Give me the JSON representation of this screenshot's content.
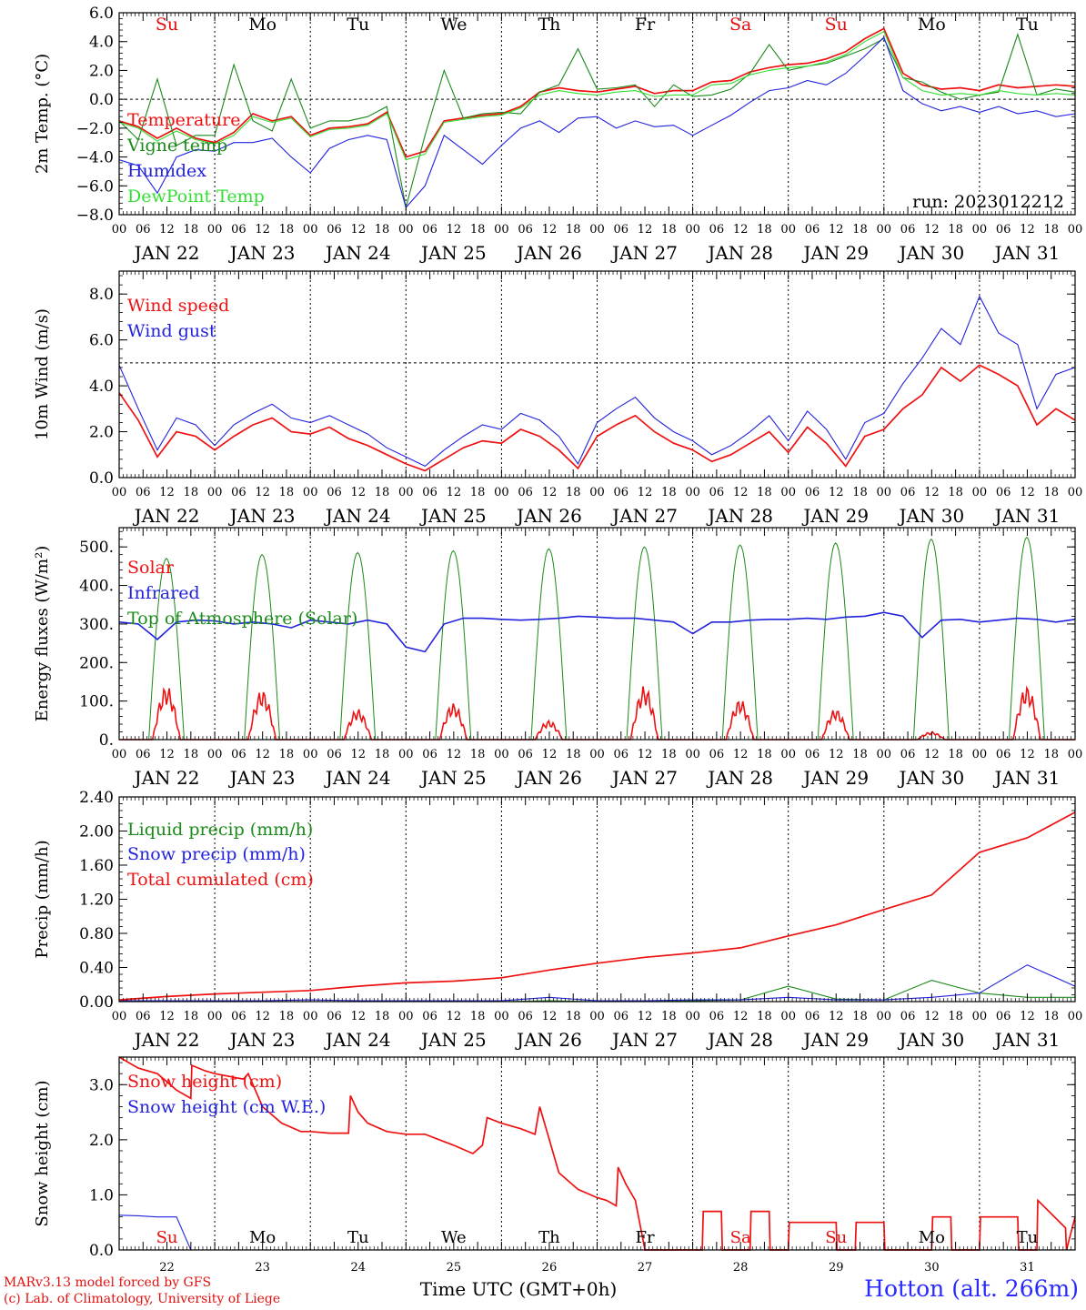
{
  "run_label": "run: 2023012212",
  "credit_lines": [
    "MARv3.13 model forced by GFS",
    "(c) Lab. of Climatology, University of Liege"
  ],
  "station": "Hotton (alt. 266m)",
  "x_axis_label": "Time UTC (GMT+0h)",
  "date_labels": [
    "JAN 22",
    "JAN 23",
    "JAN 24",
    "JAN 25",
    "JAN 26",
    "JAN 27",
    "JAN 28",
    "JAN 29",
    "JAN 30",
    "JAN 31"
  ],
  "hour_ticks": [
    "00",
    "06",
    "12",
    "18"
  ],
  "day_names": [
    {
      "label": "Su",
      "color": "#e01010"
    },
    {
      "label": "Mo",
      "color": "#000000"
    },
    {
      "label": "Tu",
      "color": "#000000"
    },
    {
      "label": "We",
      "color": "#000000"
    },
    {
      "label": "Th",
      "color": "#000000"
    },
    {
      "label": "Fr",
      "color": "#000000"
    },
    {
      "label": "Sa",
      "color": "#e01010"
    },
    {
      "label": "Su",
      "color": "#e01010"
    },
    {
      "label": "Mo",
      "color": "#000000"
    },
    {
      "label": "Tu",
      "color": "#000000"
    }
  ],
  "bottom_day_numbers": [
    "22",
    "23",
    "24",
    "25",
    "26",
    "27",
    "28",
    "29",
    "30",
    "31"
  ],
  "colors": {
    "red": "#ee1111",
    "green": "#1a8a1a",
    "blue": "#2222dd",
    "lightgreen": "#33dd33"
  },
  "chart_data": [
    {
      "type": "line",
      "name": "temperature",
      "ylabel": "2m Temp. (°C)",
      "ylim": [
        -8,
        6
      ],
      "ticks": [
        "6.0",
        "4.0",
        "2.0",
        "0.0",
        "−2.0",
        "−4.0",
        "−6.0",
        "−8.0"
      ],
      "tick_values": [
        6,
        4,
        2,
        0,
        -2,
        -4,
        -6,
        -8
      ],
      "ref_line": 0,
      "x_days": [
        0,
        0.2,
        0.4,
        0.6,
        0.8,
        1,
        1.2,
        1.4,
        1.6,
        1.8,
        2,
        2.2,
        2.4,
        2.6,
        2.8,
        3,
        3.2,
        3.4,
        3.6,
        3.8,
        4,
        4.2,
        4.4,
        4.6,
        4.8,
        5,
        5.2,
        5.4,
        5.6,
        5.8,
        6,
        6.2,
        6.4,
        6.6,
        6.8,
        7,
        7.2,
        7.4,
        7.6,
        7.8,
        8,
        8.2,
        8.4,
        8.6,
        8.8,
        9,
        9.2,
        9.4,
        9.6,
        9.8,
        10
      ],
      "series": [
        {
          "name": "Temperature",
          "color": "#ee1111",
          "values": [
            -1.5,
            -1.9,
            -2.7,
            -2.0,
            -2.7,
            -3.0,
            -2.3,
            -1.0,
            -1.5,
            -1.2,
            -2.5,
            -2.0,
            -1.9,
            -1.7,
            -0.9,
            -4.0,
            -3.6,
            -1.5,
            -1.3,
            -1.1,
            -1.0,
            -0.5,
            0.5,
            0.8,
            0.6,
            0.5,
            0.7,
            0.9,
            0.4,
            0.6,
            0.6,
            1.2,
            1.3,
            1.9,
            2.2,
            2.4,
            2.5,
            2.8,
            3.3,
            4.2,
            4.9,
            1.8,
            1.0,
            0.7,
            0.8,
            0.6,
            1.0,
            0.8,
            0.9,
            1.0,
            0.9
          ]
        },
        {
          "name": "Vigne temp",
          "color": "#1a8a1a",
          "values": [
            -1.5,
            -2.8,
            1.4,
            -3.2,
            -2.5,
            -2.5,
            2.4,
            -1.5,
            -2.2,
            1.4,
            -2.0,
            -1.5,
            -1.5,
            -1.2,
            -0.5,
            -7.5,
            -2.5,
            2.0,
            -1.3,
            -1.0,
            -0.9,
            -1.0,
            0.5,
            1.0,
            3.5,
            0.7,
            0.8,
            1.0,
            -0.5,
            1.0,
            0.2,
            0.3,
            0.7,
            1.8,
            3.8,
            2.0,
            2.3,
            2.5,
            3.0,
            3.5,
            4.2,
            1.5,
            1.2,
            0.5,
            0.0,
            0.3,
            0.5,
            4.5,
            0.3,
            0.7,
            0.5
          ]
        },
        {
          "name": "Humidex",
          "color": "#2222dd",
          "values": [
            -4.2,
            -4.6,
            -6.5,
            -4.0,
            -3.5,
            -3.6,
            -3.0,
            -3.0,
            -2.7,
            -4.0,
            -5.1,
            -3.4,
            -2.8,
            -2.5,
            -2.8,
            -7.5,
            -6.0,
            -2.5,
            -3.5,
            -4.5,
            -3.2,
            -2.0,
            -1.5,
            -2.3,
            -1.3,
            -1.2,
            -2.0,
            -1.5,
            -1.9,
            -1.8,
            -2.5,
            -1.8,
            -1.1,
            -0.2,
            0.6,
            0.8,
            1.3,
            1.0,
            1.8,
            3.0,
            4.3,
            0.6,
            -0.3,
            -0.8,
            -0.5,
            -0.9,
            -0.5,
            -1.0,
            -0.8,
            -1.2,
            -1.0
          ]
        },
        {
          "name": "DewPoint Temp",
          "color": "#33dd33",
          "values": [
            -1.6,
            -2.0,
            -2.9,
            -2.2,
            -2.8,
            -3.1,
            -2.5,
            -1.2,
            -1.6,
            -1.3,
            -2.6,
            -2.1,
            -2.0,
            -1.8,
            -1.0,
            -4.2,
            -3.8,
            -1.6,
            -1.4,
            -1.2,
            -1.1,
            -0.6,
            0.3,
            0.6,
            0.4,
            0.3,
            0.5,
            0.6,
            0.2,
            0.3,
            0.3,
            1.0,
            1.1,
            1.7,
            2.0,
            2.2,
            2.3,
            2.6,
            3.1,
            4.0,
            4.7,
            1.5,
            0.6,
            0.3,
            0.4,
            0.3,
            0.6,
            0.4,
            0.3,
            0.4,
            0.3
          ]
        }
      ]
    },
    {
      "type": "line",
      "name": "wind",
      "ylabel": "10m Wind (m/s)",
      "ylim": [
        0,
        9
      ],
      "ticks": [
        "8.0",
        "6.0",
        "4.0",
        "2.0",
        "0.0"
      ],
      "tick_values": [
        8,
        6,
        4,
        2,
        0
      ],
      "ref_line": 5,
      "x_days": [
        0,
        0.2,
        0.4,
        0.6,
        0.8,
        1,
        1.2,
        1.4,
        1.6,
        1.8,
        2,
        2.2,
        2.4,
        2.6,
        2.8,
        3,
        3.2,
        3.4,
        3.6,
        3.8,
        4,
        4.2,
        4.4,
        4.6,
        4.8,
        5,
        5.2,
        5.4,
        5.6,
        5.8,
        6,
        6.2,
        6.4,
        6.6,
        6.8,
        7,
        7.2,
        7.4,
        7.6,
        7.8,
        8,
        8.2,
        8.4,
        8.6,
        8.8,
        9,
        9.2,
        9.4,
        9.6,
        9.8,
        10
      ],
      "series": [
        {
          "name": "Wind speed",
          "color": "#ee1111",
          "values": [
            3.7,
            2.5,
            0.9,
            2.0,
            1.8,
            1.2,
            1.8,
            2.3,
            2.6,
            2.0,
            1.9,
            2.2,
            1.7,
            1.4,
            1.0,
            0.6,
            0.3,
            0.8,
            1.3,
            1.6,
            1.5,
            2.1,
            1.8,
            1.2,
            0.4,
            1.8,
            2.3,
            2.7,
            2.0,
            1.5,
            1.2,
            0.7,
            1.0,
            1.5,
            2.0,
            1.1,
            2.2,
            1.5,
            0.5,
            1.8,
            2.1,
            3.0,
            3.6,
            4.8,
            4.2,
            4.9,
            4.5,
            4.0,
            2.3,
            3.0,
            2.5
          ]
        },
        {
          "name": "Wind gust",
          "color": "#2222dd",
          "values": [
            4.9,
            3.0,
            1.2,
            2.6,
            2.3,
            1.4,
            2.3,
            2.8,
            3.2,
            2.6,
            2.4,
            2.7,
            2.3,
            1.9,
            1.3,
            0.9,
            0.5,
            1.2,
            1.8,
            2.3,
            2.1,
            2.8,
            2.5,
            1.8,
            0.6,
            2.4,
            3.0,
            3.5,
            2.6,
            2.0,
            1.6,
            1.0,
            1.4,
            2.0,
            2.7,
            1.6,
            2.9,
            2.1,
            0.8,
            2.4,
            2.8,
            4.1,
            5.2,
            6.5,
            5.8,
            7.9,
            6.3,
            5.8,
            3.0,
            4.5,
            4.8
          ]
        }
      ]
    },
    {
      "type": "line",
      "name": "energy",
      "ylabel": "Energy fluxes (W/m²)",
      "ylim": [
        0,
        550
      ],
      "ticks": [
        "500.",
        "400.",
        "300.",
        "200.",
        "100.",
        "0."
      ],
      "tick_values": [
        500,
        400,
        300,
        200,
        100,
        0
      ],
      "sun": {
        "rise": 0.31,
        "set": 0.68,
        "toa_peak": [
          470,
          480,
          485,
          490,
          495,
          500,
          505,
          510,
          520,
          525
        ],
        "solar_peak": [
          140,
          130,
          80,
          95,
          50,
          140,
          105,
          80,
          20,
          140
        ]
      },
      "series": [
        {
          "name": "Solar",
          "color": "#ee1111"
        },
        {
          "name": "Infrared",
          "color": "#2222dd",
          "x_days": [
            0,
            0.2,
            0.4,
            0.6,
            0.8,
            1,
            1.2,
            1.4,
            1.6,
            1.8,
            2,
            2.2,
            2.4,
            2.6,
            2.8,
            3,
            3.2,
            3.4,
            3.6,
            3.8,
            4,
            4.2,
            4.4,
            4.6,
            4.8,
            5,
            5.2,
            5.4,
            5.6,
            5.8,
            6,
            6.2,
            6.4,
            6.6,
            6.8,
            7,
            7.2,
            7.4,
            7.6,
            7.8,
            8,
            8.2,
            8.4,
            8.6,
            8.8,
            9,
            9.2,
            9.4,
            9.6,
            9.8,
            10
          ],
          "values": [
            305,
            300,
            260,
            305,
            310,
            308,
            300,
            305,
            300,
            290,
            310,
            305,
            300,
            310,
            300,
            240,
            228,
            300,
            315,
            315,
            312,
            310,
            312,
            315,
            320,
            318,
            315,
            315,
            310,
            305,
            275,
            305,
            305,
            310,
            312,
            312,
            315,
            312,
            318,
            320,
            330,
            320,
            265,
            310,
            312,
            305,
            310,
            315,
            312,
            305,
            312
          ]
        },
        {
          "name": "Top of Atmosphere (Solar)",
          "color": "#1a8a1a"
        }
      ]
    },
    {
      "type": "line",
      "name": "precip",
      "ylabel": "Precip (mm/h)",
      "ylim": [
        0,
        2.4
      ],
      "ticks": [
        "2.40",
        "2.00",
        "1.60",
        "1.20",
        "0.80",
        "0.40",
        "0.00"
      ],
      "tick_values": [
        2.4,
        2.0,
        1.6,
        1.2,
        0.8,
        0.4,
        0.0
      ],
      "x_days": [
        0,
        0.5,
        1,
        1.5,
        2,
        2.5,
        3,
        3.5,
        4,
        4.5,
        5,
        5.5,
        6,
        6.5,
        7,
        7.5,
        8,
        8.5,
        9,
        9.5,
        10
      ],
      "series": [
        {
          "name": "Liquid precip (mm/h)",
          "color": "#1a8a1a",
          "values": [
            0,
            0,
            0,
            0,
            0,
            0,
            0,
            0,
            0,
            0.01,
            0,
            0,
            0.01,
            0.02,
            0.18,
            0.03,
            0.02,
            0.25,
            0.1,
            0.05,
            0.05
          ]
        },
        {
          "name": "Snow precip (mm/h)",
          "color": "#2222dd",
          "values": [
            0.01,
            0.01,
            0.01,
            0.01,
            0.02,
            0.01,
            0.01,
            0.01,
            0.01,
            0.05,
            0.01,
            0.01,
            0.02,
            0.02,
            0.05,
            0.02,
            0.02,
            0.05,
            0.1,
            0.43,
            0.18
          ]
        },
        {
          "name": "Total cumulated (cm)",
          "color": "#ee1111",
          "values": [
            0.02,
            0.06,
            0.09,
            0.11,
            0.13,
            0.18,
            0.22,
            0.24,
            0.28,
            0.37,
            0.45,
            0.52,
            0.57,
            0.63,
            0.77,
            0.9,
            1.08,
            1.25,
            1.75,
            1.92,
            2.22
          ]
        }
      ]
    },
    {
      "type": "line",
      "name": "snow",
      "ylabel": "Snow height (cm)",
      "ylim": [
        0,
        3.5
      ],
      "ticks": [
        "3.0",
        "2.0",
        "1.0",
        "0.0"
      ],
      "tick_values": [
        3,
        2,
        1,
        0
      ],
      "x_days": [
        0,
        0.2,
        0.4,
        0.6,
        0.75,
        0.76,
        0.9,
        1.0,
        1.3,
        1.35,
        1.5,
        1.7,
        1.9,
        2.0,
        2.2,
        2.4,
        2.42,
        2.5,
        2.6,
        2.8,
        3.0,
        3.2,
        3.5,
        3.7,
        3.8,
        3.85,
        4.0,
        4.2,
        4.35,
        4.4,
        4.5,
        4.6,
        4.8,
        5.0,
        5.1,
        5.2,
        5.22,
        5.3,
        5.4,
        5.5,
        5.51,
        6.0,
        6.1,
        6.11,
        6.2,
        6.3,
        6.31,
        6.6,
        6.61,
        6.8,
        6.81,
        7.0,
        7.01,
        7.5,
        7.51,
        7.7,
        7.71,
        8.0,
        8.01,
        8.5,
        8.51,
        8.7,
        8.71,
        9.0,
        9.01,
        9.4,
        9.41,
        9.6,
        9.61,
        9.9,
        9.91,
        10
      ],
      "series": [
        {
          "name": "Snow height (cm)",
          "color": "#ee1111",
          "values": [
            3.5,
            3.3,
            3.2,
            2.9,
            2.75,
            3.35,
            3.25,
            3.2,
            3.1,
            3.2,
            2.6,
            2.3,
            2.15,
            2.15,
            2.12,
            2.12,
            2.8,
            2.5,
            2.3,
            2.15,
            2.1,
            2.1,
            1.9,
            1.75,
            1.9,
            2.4,
            2.3,
            2.2,
            2.1,
            2.6,
            2.0,
            1.4,
            1.1,
            0.95,
            0.9,
            0.8,
            1.5,
            1.2,
            0.9,
            0.0,
            0.0,
            0.0,
            0.0,
            0.7,
            0.7,
            0.7,
            0.0,
            0.0,
            0.7,
            0.7,
            0.0,
            0.0,
            0.5,
            0.5,
            0.0,
            0.0,
            0.5,
            0.5,
            0.0,
            0.0,
            0.6,
            0.6,
            0.0,
            0.0,
            0.6,
            0.6,
            0.0,
            0.0,
            0.9,
            0.4,
            0.0,
            0.6
          ]
        },
        {
          "name": "Snow height (cm W.E.)",
          "color": "#2222dd",
          "values": [
            0.63,
            0.62,
            0.6,
            0.6,
            0.0,
            0.0,
            0.0,
            0.0,
            0.0,
            0.0,
            0.0,
            0.0,
            0.0,
            0.0,
            0.0,
            0.0,
            0.0,
            0.0,
            0.0,
            0.0,
            0.0,
            0.0,
            0.0,
            0.0,
            0.0,
            0.0,
            0.0,
            0.0,
            0.0,
            0.0,
            0.0,
            0.0,
            0.0,
            0.0,
            0.0,
            0.0,
            0.0,
            0.0,
            0.0,
            0.0,
            0.0,
            0.0,
            0.0,
            0.0,
            0.0,
            0.0,
            0.0,
            0.0,
            0.0,
            0.0,
            0.0,
            0.0,
            0.0,
            0.0,
            0.0,
            0.0,
            0.0,
            0.0,
            0.0,
            0.0,
            0.0,
            0.0,
            0.0,
            0.0,
            0.0,
            0.0,
            0.0,
            0.0,
            0.0,
            0.0,
            0.0,
            0.0
          ]
        }
      ]
    }
  ]
}
